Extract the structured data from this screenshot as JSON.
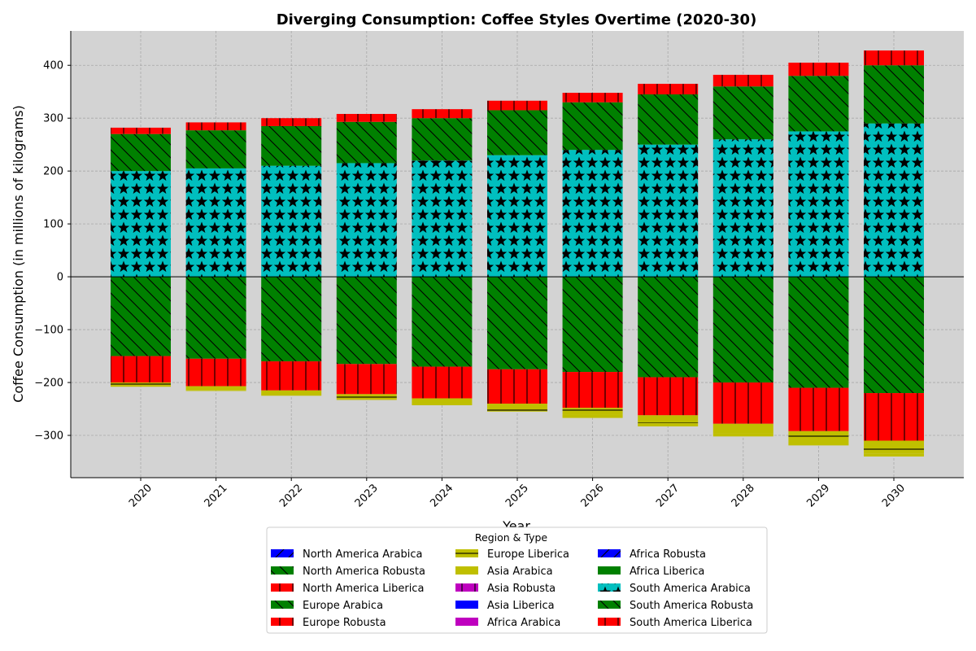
{
  "chart_data": {
    "type": "bar",
    "stacking": "diverging",
    "title": "Diverging Consumption: Coffee Styles Overtime (2020-30)",
    "xlabel": "Year",
    "ylabel": "Coffee Consumption (in millions of kilograms)",
    "ylim": [
      -380,
      465
    ],
    "yticks": [
      -300,
      -200,
      -100,
      0,
      100,
      200,
      300,
      400
    ],
    "grid": true,
    "background": "#d3d3d3",
    "legend": {
      "title": "Region & Type",
      "placement": "bottom-center",
      "columns": 3
    },
    "categories": [
      "2020",
      "2021",
      "2022",
      "2023",
      "2024",
      "2025",
      "2026",
      "2027",
      "2028",
      "2029",
      "2030"
    ],
    "series": [
      {
        "name": "North America Arabica",
        "color": "#0000ff",
        "hatch": "/",
        "values": [
          0,
          0,
          0,
          0,
          0,
          0,
          0,
          0,
          0,
          0,
          0
        ]
      },
      {
        "name": "North America Robusta",
        "color": "#008000",
        "hatch": "\\",
        "values": [
          -150,
          -155,
          -160,
          -165,
          -170,
          -175,
          -180,
          -190,
          -200,
          -210,
          -220
        ]
      },
      {
        "name": "North America Liberica",
        "color": "#ff0000",
        "hatch": "|",
        "values": [
          -50,
          -52,
          -55,
          -57,
          -60,
          -65,
          -68,
          -72,
          -78,
          -82,
          -90
        ]
      },
      {
        "name": "Europe Arabica",
        "color": "#008000",
        "hatch": "\\",
        "values": [
          0,
          0,
          0,
          0,
          0,
          0,
          0,
          0,
          0,
          0,
          0
        ]
      },
      {
        "name": "Europe Robusta",
        "color": "#ff0000",
        "hatch": "|",
        "values": [
          0,
          0,
          0,
          0,
          0,
          0,
          0,
          0,
          0,
          0,
          0
        ]
      },
      {
        "name": "Europe Liberica",
        "color": "#bfbf00",
        "hatch": "-",
        "values": [
          -5,
          -8,
          -10,
          -10,
          -10,
          -15,
          -12,
          -15,
          -18,
          -15,
          -25
        ]
      },
      {
        "name": "Asia Arabica",
        "color": "#bfbf00",
        "hatch": "",
        "values": [
          -3,
          -1,
          0,
          -1,
          -3,
          0,
          -7,
          -6,
          -6,
          -12,
          -5
        ]
      },
      {
        "name": "Asia Robusta",
        "color": "#bf00bf",
        "hatch": "+",
        "values": [
          0,
          0,
          0,
          0,
          0,
          0,
          0,
          0,
          0,
          0,
          0
        ]
      },
      {
        "name": "Asia Liberica",
        "color": "#0000ff",
        "hatch": "",
        "values": [
          0,
          0,
          0,
          0,
          0,
          0,
          0,
          0,
          0,
          0,
          0
        ]
      },
      {
        "name": "Africa Arabica",
        "color": "#bf00bf",
        "hatch": "",
        "values": [
          0,
          0,
          0,
          0,
          0,
          0,
          0,
          0,
          0,
          0,
          0
        ]
      },
      {
        "name": "Africa Robusta",
        "color": "#0000ff",
        "hatch": "/",
        "values": [
          0,
          0,
          0,
          0,
          0,
          0,
          0,
          0,
          0,
          0,
          0
        ]
      },
      {
        "name": "Africa Liberica",
        "color": "#008000",
        "hatch": "",
        "values": [
          0,
          0,
          0,
          0,
          0,
          0,
          0,
          0,
          0,
          0,
          0
        ]
      },
      {
        "name": "South America Arabica",
        "color": "#00bfbf",
        "hatch": "*",
        "values": [
          200,
          205,
          210,
          215,
          220,
          230,
          240,
          250,
          260,
          275,
          290
        ]
      },
      {
        "name": "South America Robusta",
        "color": "#008000",
        "hatch": "\\",
        "values": [
          70,
          72,
          75,
          78,
          80,
          85,
          90,
          95,
          100,
          105,
          110
        ]
      },
      {
        "name": "South America Liberica",
        "color": "#ff0000",
        "hatch": "|",
        "values": [
          12,
          15,
          15,
          15,
          17,
          18,
          18,
          20,
          22,
          25,
          28
        ]
      }
    ]
  }
}
